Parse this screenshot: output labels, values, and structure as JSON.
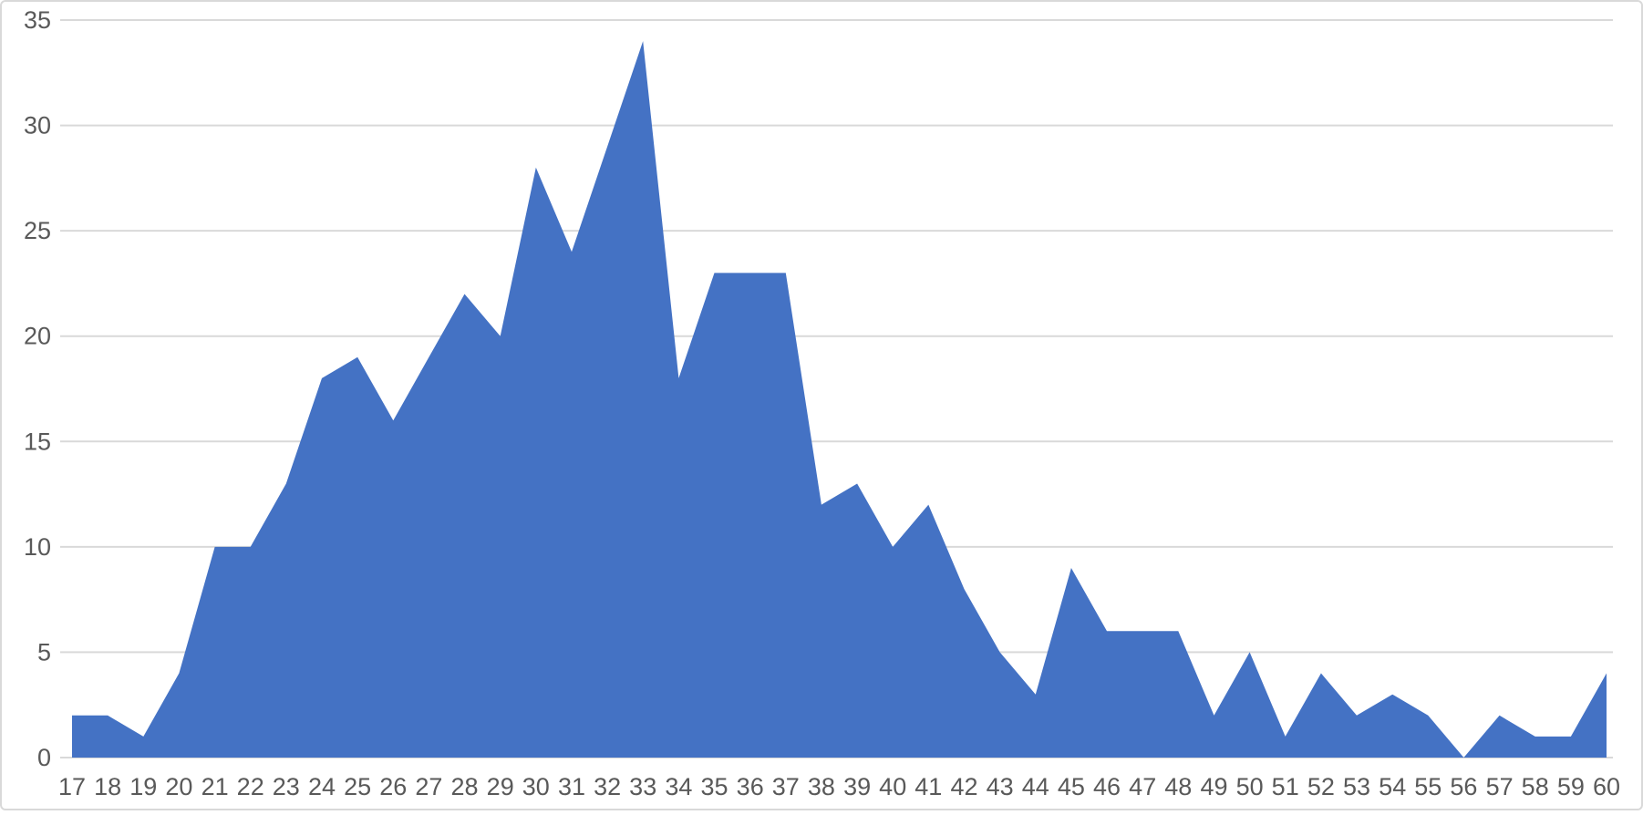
{
  "chart_data": {
    "type": "area",
    "title": "",
    "xlabel": "",
    "ylabel": "",
    "categories": [
      17,
      18,
      19,
      20,
      21,
      22,
      23,
      24,
      25,
      26,
      27,
      28,
      29,
      30,
      31,
      32,
      33,
      34,
      35,
      36,
      37,
      38,
      39,
      40,
      41,
      42,
      43,
      44,
      45,
      46,
      47,
      48,
      49,
      50,
      51,
      52,
      53,
      54,
      55,
      56,
      57,
      58,
      59,
      60
    ],
    "values": [
      2,
      2,
      1,
      4,
      10,
      10,
      13,
      18,
      19,
      16,
      19,
      22,
      20,
      28,
      24,
      29,
      34,
      18,
      23,
      23,
      23,
      12,
      13,
      10,
      12,
      8,
      5,
      3,
      9,
      6,
      6,
      6,
      2,
      5,
      1,
      4,
      2,
      3,
      2,
      0,
      2,
      1,
      1,
      4
    ],
    "y_ticks": [
      0,
      5,
      10,
      15,
      20,
      25,
      30,
      35
    ],
    "ylim": [
      0,
      35
    ],
    "grid": "horizontal",
    "legend": "none",
    "colors": {
      "series_fill": "#4472C4",
      "gridline": "#D9D9D9",
      "axis_line": "#D9D9D9",
      "tick_label": "#595959",
      "chart_border": "#D9D9D9",
      "background": "#FFFFFF"
    }
  }
}
